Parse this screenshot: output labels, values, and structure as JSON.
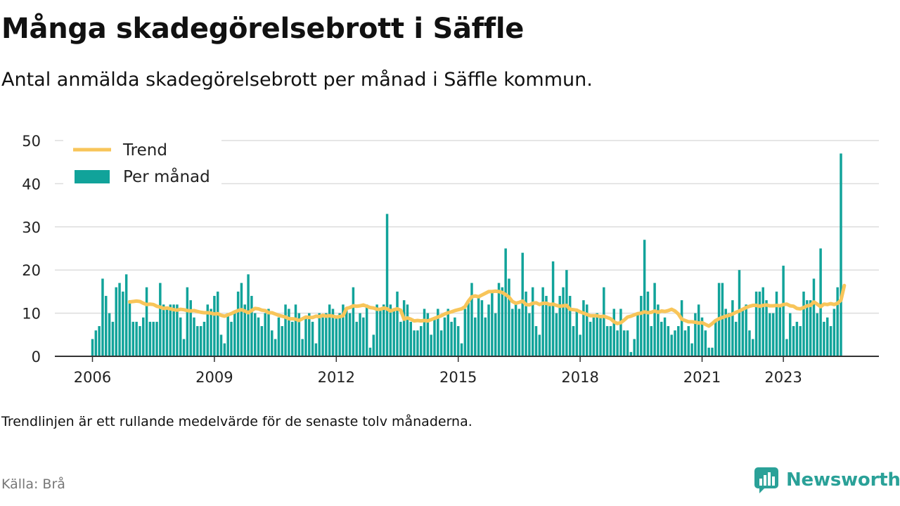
{
  "title": "Många skadegörelsebrott i Säffle",
  "subtitle": "Antal anmälda skadegörelsebrott per månad i Säffle kommun.",
  "note": "Trendlinjen är ett rullande medelvärde för de senaste tolv månaderna.",
  "source": "Källa: Brå",
  "brand": "Newsworthy",
  "colors": {
    "bars": "#11a39a",
    "trend": "#f8c55a",
    "grid": "#dddddd",
    "axis": "#333333",
    "brand": "#2aa198"
  },
  "chart_data": {
    "type": "bar",
    "x_start": "2006-01",
    "x_end": "2023-04",
    "xticks": [
      "2006",
      "2009",
      "2012",
      "2015",
      "2018",
      "2021",
      "2023"
    ],
    "ylim": [
      0,
      50
    ],
    "yticks": [
      0,
      10,
      20,
      30,
      40,
      50
    ],
    "grid": true,
    "legend_position": "top-left",
    "series": [
      {
        "name": "Per månad",
        "type": "bar",
        "values": [
          4,
          6,
          7,
          18,
          14,
          10,
          8,
          16,
          17,
          15,
          19,
          13,
          8,
          8,
          7,
          9,
          16,
          8,
          8,
          8,
          17,
          12,
          11,
          12,
          12,
          12,
          9,
          4,
          16,
          13,
          9,
          7,
          7,
          8,
          12,
          11,
          14,
          15,
          5,
          3,
          10,
          8,
          10,
          15,
          17,
          12,
          19,
          14,
          10,
          9,
          7,
          10,
          11,
          6,
          4,
          9,
          7,
          12,
          11,
          8,
          12,
          10,
          4,
          9,
          10,
          8,
          3,
          10,
          9,
          10,
          12,
          11,
          9,
          10,
          12,
          11,
          10,
          16,
          8,
          10,
          9,
          12,
          2,
          5,
          12,
          11,
          12,
          33,
          12,
          11,
          15,
          8,
          13,
          12,
          8,
          6,
          6,
          7,
          11,
          10,
          5,
          9,
          11,
          6,
          9,
          11,
          8,
          9,
          7,
          3,
          11,
          13,
          17,
          9,
          14,
          13,
          9,
          12,
          15,
          10,
          17,
          16,
          25,
          18,
          11,
          12,
          11,
          24,
          15,
          10,
          16,
          7,
          5,
          16,
          14,
          12,
          22,
          10,
          14,
          16,
          20,
          14,
          7,
          11,
          5,
          13,
          12,
          8,
          9,
          10,
          9,
          16,
          7,
          7,
          11,
          6,
          11,
          6,
          6,
          1,
          4,
          10,
          14,
          27,
          15,
          7,
          17,
          12,
          8,
          9,
          7,
          5,
          6,
          7,
          13,
          6,
          7,
          3,
          10,
          12,
          9,
          6,
          2,
          2,
          8,
          17,
          17,
          11,
          10,
          13,
          8,
          20,
          11,
          12,
          6,
          4,
          15,
          15,
          16,
          13,
          10,
          10,
          15,
          12,
          21,
          4,
          10,
          7,
          8,
          7,
          15,
          13,
          13,
          18,
          10,
          25,
          8,
          9,
          7,
          11,
          16,
          47
        ]
      },
      {
        "name": "Trend",
        "type": "line",
        "start_index": 11,
        "values": [
          12.6,
          12.7,
          12.8,
          12.7,
          12.3,
          12.0,
          12.1,
          12.0,
          11.6,
          11.4,
          11.1,
          11.2,
          11.0,
          10.8,
          10.7,
          10.9,
          10.8,
          10.6,
          10.5,
          10.6,
          10.4,
          10.2,
          10.1,
          10.1,
          10.0,
          9.8,
          9.9,
          9.5,
          9.3,
          9.6,
          9.9,
          10.3,
          10.6,
          10.8,
          10.5,
          10.1,
          10.6,
          11.1,
          11.0,
          10.7,
          10.6,
          10.1,
          10.1,
          9.8,
          9.5,
          9.3,
          9.1,
          8.7,
          8.7,
          8.6,
          8.3,
          8.7,
          9.1,
          9.0,
          9.0,
          9.3,
          9.2,
          9.5,
          9.3,
          9.4,
          9.3,
          9.1,
          9.2,
          9.4,
          11.1,
          11.3,
          11.7,
          11.6,
          11.7,
          11.9,
          11.6,
          11.3,
          11.2,
          10.9,
          10.9,
          11.2,
          11.0,
          10.5,
          10.8,
          11.0,
          10.7,
          8.6,
          8.9,
          8.6,
          8.2,
          8.3,
          8.2,
          8.3,
          8.2,
          8.5,
          8.8,
          9.1,
          9.4,
          9.8,
          10.1,
          10.3,
          10.6,
          10.8,
          11.0,
          11.5,
          12.8,
          13.8,
          14.0,
          13.8,
          14.2,
          14.6,
          15.0,
          15.0,
          15.1,
          15.0,
          14.8,
          14.3,
          13.7,
          12.7,
          12.3,
          12.5,
          12.8,
          12.0,
          11.9,
          12.3,
          12.4,
          12.0,
          12.3,
          12.3,
          12.0,
          12.1,
          11.8,
          11.6,
          11.7,
          11.8,
          10.9,
          10.8,
          10.7,
          10.3,
          10.0,
          9.7,
          9.4,
          9.4,
          9.4,
          9.2,
          9.3,
          9.0,
          8.7,
          8.0,
          7.6,
          7.8,
          8.4,
          9.1,
          9.3,
          9.6,
          9.9,
          10.0,
          10.3,
          10.1,
          10.2,
          10.5,
          10.2,
          10.5,
          10.4,
          10.6,
          10.9,
          10.5,
          9.8,
          8.6,
          8.3,
          8.0,
          8.0,
          7.9,
          7.7,
          7.8,
          7.4,
          7.0,
          7.6,
          8.3,
          8.7,
          9.0,
          9.3,
          9.5,
          9.8,
          10.2,
          10.5,
          10.9,
          11.3,
          11.6,
          11.8,
          11.8,
          11.6,
          11.8,
          11.9,
          11.7,
          11.7,
          11.8,
          11.7,
          12.0,
          12.1,
          11.7,
          11.6,
          11.1,
          11.0,
          11.3,
          11.7,
          11.8,
          12.6,
          12.1,
          11.5,
          12.1,
          12.0,
          12.2,
          12.0,
          12.3,
          13.0,
          16.4
        ]
      }
    ]
  }
}
